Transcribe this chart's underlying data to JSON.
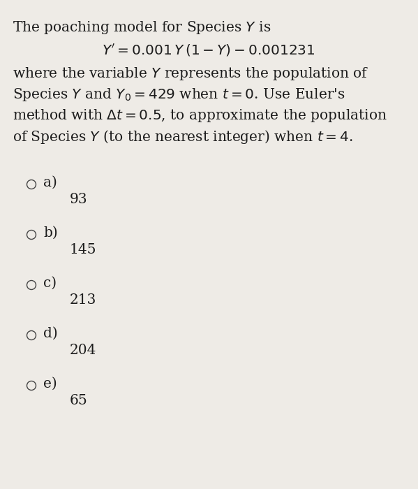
{
  "background_color": "#eeebe6",
  "title_text": "The poaching model for Species $Y$ is",
  "equation": "$Y' = 0.001\\, Y\\,(1 - Y) - 0.001231$",
  "body_lines": [
    "where the variable $Y$ represents the population of",
    "Species $Y$ and $Y_0 = 429$ when $t = 0$. Use Euler's",
    "method with $\\Delta t = 0.5$, to approximate the population",
    "of Species $Y$ (to the nearest integer) when $t = 4$."
  ],
  "options": [
    {
      "label": "a)",
      "value": "93"
    },
    {
      "label": "b)",
      "value": "145"
    },
    {
      "label": "c)",
      "value": "213"
    },
    {
      "label": "d)",
      "value": "204"
    },
    {
      "label": "e)",
      "value": "65"
    }
  ],
  "text_color": "#1c1c1c",
  "circle_color": "#444444",
  "font_size_body": 14.5,
  "font_size_options": 14.5
}
